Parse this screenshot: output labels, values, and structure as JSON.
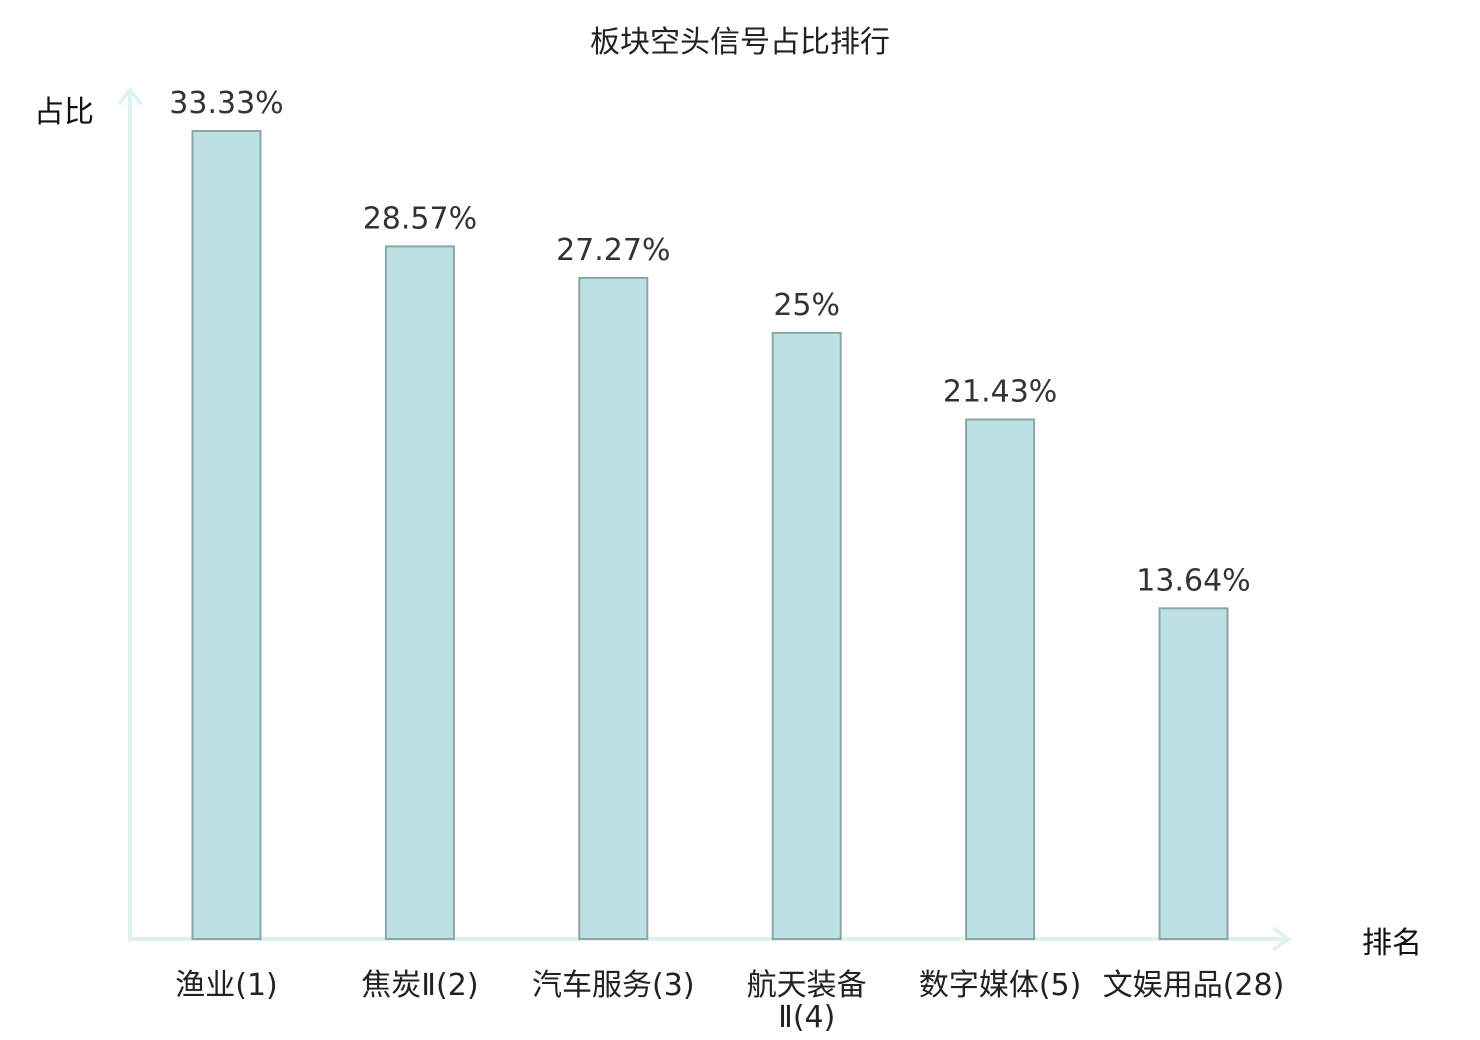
{
  "chart_data": {
    "type": "bar",
    "title": "板块空头信号占比排行",
    "xlabel": "排名",
    "ylabel": "占比",
    "categories": [
      [
        "渔业(1)"
      ],
      [
        "焦炭Ⅱ(2)"
      ],
      [
        "汽车服务(3)"
      ],
      [
        "航天装备",
        "Ⅱ(4)"
      ],
      [
        "数字媒体(5)"
      ],
      [
        "文娱用品(28)"
      ]
    ],
    "values": [
      33.33,
      28.57,
      27.27,
      25,
      21.43,
      13.64
    ],
    "value_labels": [
      "33.33%",
      "28.57%",
      "27.27%",
      "25%",
      "21.43%",
      "13.64%"
    ],
    "highlight_index": 5,
    "ylim": [
      0,
      33.33
    ],
    "grid": false,
    "colors": {
      "bar_fill": "#bde0e3",
      "bar_stroke": "#8aa6a8",
      "axis": "#e0f2f0",
      "highlight_text": "#e8161b",
      "text": "#222222"
    }
  }
}
